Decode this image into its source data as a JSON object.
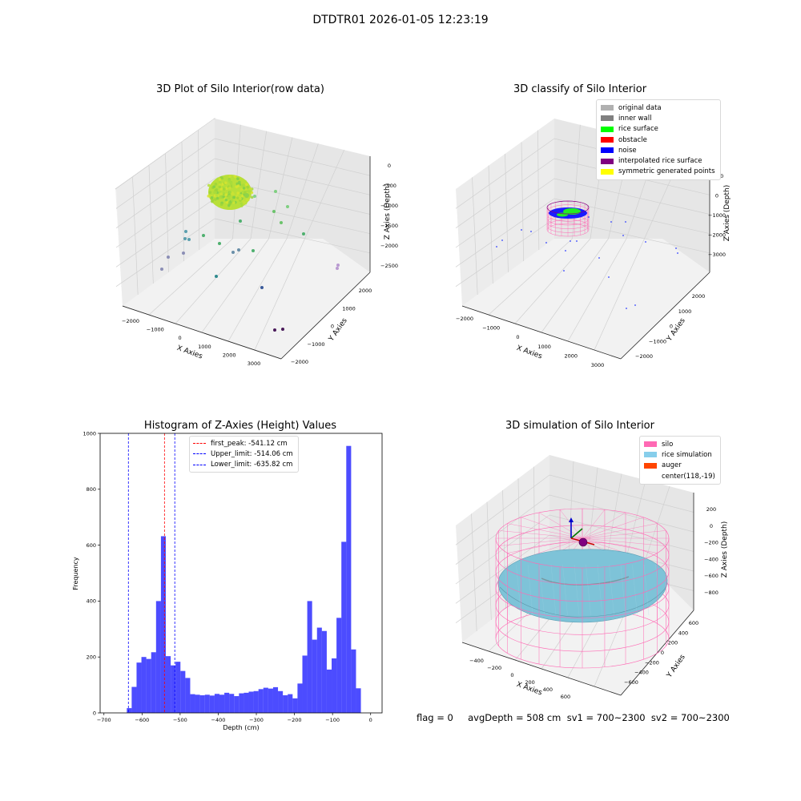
{
  "figure_title": "DTDTR01 2026-01-05 12:23:19",
  "status_line": "flag = 0     avgDepth = 508 cm  sv1 = 700~2300  sv2 = 700~2300",
  "panels": {
    "raw": {
      "title": "3D Plot of Silo Interior(row data)",
      "xlabel": "X Axies",
      "ylabel": "Y Axies",
      "zlabel": "Z Axies (Depth)",
      "xticks": [
        "−2000",
        "−1000",
        "0",
        "1000",
        "2000",
        "3000"
      ],
      "yticks": [
        "−2000",
        "−1000",
        "0",
        "1000",
        "2000"
      ],
      "zticks": [
        "0",
        "−500",
        "−1000",
        "−1500",
        "−2000",
        "−2500"
      ]
    },
    "classify": {
      "title": "3D classify of Silo Interior",
      "xlabel": "X Axies",
      "ylabel": "Y Axies",
      "zlabel": "Z Axies (Depth)",
      "xticks": [
        "−2000",
        "−1000",
        "0",
        "1000",
        "2000",
        "3000"
      ],
      "yticks": [
        "−2000",
        "−1000",
        "0",
        "1000",
        "2000"
      ],
      "zticks": [
        "1000",
        "0",
        "−1000",
        "−2000",
        "−3000"
      ],
      "legend": [
        {
          "label": "original data",
          "color": "#b0b0b0"
        },
        {
          "label": "inner wall",
          "color": "#808080"
        },
        {
          "label": "rice surface",
          "color": "#00ff00"
        },
        {
          "label": "obstacle",
          "color": "#ff0000"
        },
        {
          "label": "noise",
          "color": "#0000ff"
        },
        {
          "label": "interpolated rice surface",
          "color": "#800080"
        },
        {
          "label": "symmetric generated points",
          "color": "#ffff00"
        }
      ]
    },
    "simulation": {
      "title": "3D simulation of Silo Interior",
      "xlabel": "X Axies",
      "ylabel": "Y Axies",
      "zlabel": "Z Axies (Depth)",
      "xticks": [
        "−400",
        "−200",
        "0",
        "200",
        "400",
        "600"
      ],
      "yticks": [
        "−600",
        "−400",
        "−200",
        "0",
        "200",
        "400",
        "600"
      ],
      "zticks": [
        "200",
        "0",
        "−200",
        "−400",
        "−600",
        "−800"
      ],
      "legend": [
        {
          "label": "silo",
          "color": "#ff69b4"
        },
        {
          "label": "rice simulation",
          "color": "#87ceeb"
        },
        {
          "label": "auger",
          "color": "#ff4500"
        },
        {
          "label": "center(118,-19)",
          "color": ""
        }
      ]
    }
  },
  "chart_data": {
    "type": "bar",
    "title": "Histogram of Z-Axies (Height) Values",
    "xlabel": "Depth (cm)",
    "ylabel": "Frequency",
    "xlim": [
      -710,
      30
    ],
    "ylim": [
      0,
      1000
    ],
    "xticks": [
      -700,
      -600,
      -500,
      -400,
      -300,
      -200,
      -100,
      0
    ],
    "yticks": [
      0,
      200,
      400,
      600,
      800,
      1000
    ],
    "bar_color": "#0000ff",
    "bin_start": -640,
    "bin_width": 12.8,
    "values": [
      17,
      93,
      180,
      200,
      193,
      217,
      400,
      632,
      203,
      170,
      183,
      150,
      125,
      67,
      65,
      63,
      65,
      62,
      68,
      65,
      72,
      68,
      60,
      70,
      72,
      76,
      78,
      85,
      90,
      87,
      92,
      78,
      63,
      67,
      52,
      105,
      205,
      400,
      262,
      305,
      293,
      155,
      195,
      340,
      612,
      955,
      227,
      88
    ],
    "vlines": [
      {
        "value": -541.12,
        "label": "first_peak: -541.12 cm",
        "color": "#ff0000"
      },
      {
        "value": -514.06,
        "label": "Upper_limit: -514.06 cm",
        "color": "#0000ff"
      },
      {
        "value": -635.82,
        "label": "Lower_limit: -635.82 cm",
        "color": "#0000ff"
      }
    ]
  }
}
